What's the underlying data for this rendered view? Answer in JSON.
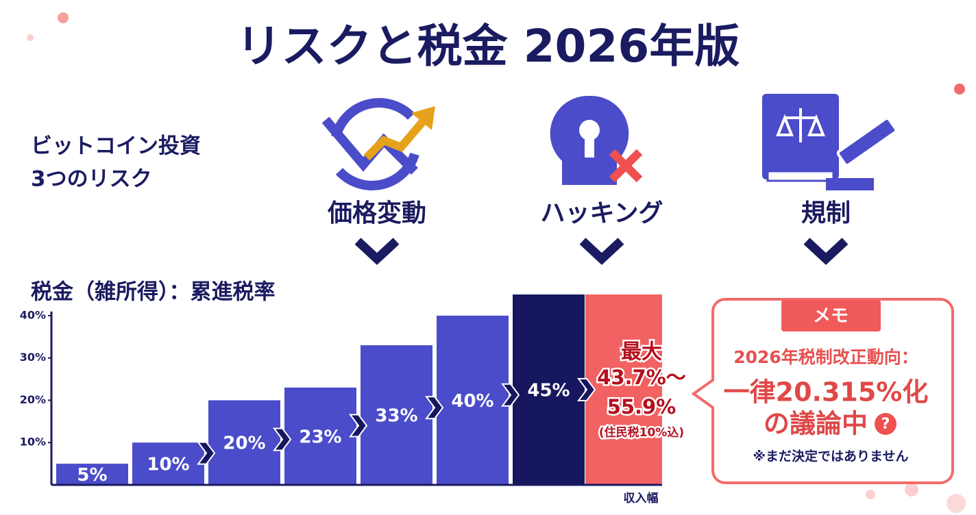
{
  "header": {
    "title": "リスクと税金 2026年版"
  },
  "risks": {
    "heading": [
      "ビットコイン投資",
      "3つのリスク"
    ],
    "items": [
      "価格変動",
      "ハッキング",
      "規制"
    ]
  },
  "chart_data": {
    "type": "bar",
    "title": "税金（雑所得）：累進税率",
    "x_label": "収入幅",
    "categories": [
      null,
      null,
      null,
      null,
      null,
      null,
      null
    ],
    "values": [
      5,
      10,
      20,
      23,
      33,
      40,
      45
    ],
    "value_labels": [
      "5%",
      "10%",
      "20%",
      "23%",
      "33%",
      "40%",
      "45%"
    ],
    "colors": [
      "#4b4cc9",
      "#4b4cc9",
      "#4b4cc9",
      "#4b4cc9",
      "#4b4cc9",
      "#4b4cc9",
      "#16175e"
    ],
    "ylim": [
      0,
      45
    ],
    "yticks": [
      {
        "value": 10,
        "label": "10%"
      },
      {
        "value": 20,
        "label": "20%"
      },
      {
        "value": 30,
        "label": "30%"
      },
      {
        "value": 40,
        "label": "40%"
      }
    ],
    "annotation": [
      "最大",
      "43.7%～",
      "55.9%",
      "(住民税10%込)"
    ]
  },
  "memo": {
    "tag": "メモ",
    "lines": [
      "2026年税制改正動向：",
      "一律20.315%化",
      "の議論中"
    ],
    "note": "※まだ決定ではありません"
  }
}
